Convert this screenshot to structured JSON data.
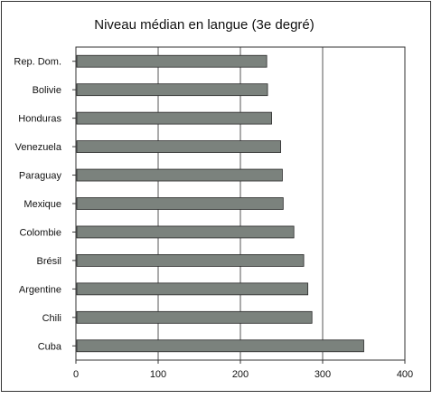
{
  "chart_data": {
    "type": "bar",
    "orientation": "horizontal",
    "title": "Niveau médian en langue (3e degré)",
    "xlabel": "",
    "ylabel": "",
    "categories": [
      "Rep. Dom.",
      "Bolivie",
      "Honduras",
      "Venezuela",
      "Paraguay",
      "Mexique",
      "Colombie",
      "Brésil",
      "Argentine",
      "Chili",
      "Cuba"
    ],
    "values": [
      232,
      233,
      238,
      249,
      251,
      252,
      265,
      277,
      282,
      287,
      350
    ],
    "xlim": [
      0,
      400
    ],
    "xticks": [
      0,
      100,
      200,
      300,
      400
    ],
    "grid": "vertical",
    "legend": "none",
    "colors": {
      "bar_fill": "#7b827d",
      "bar_stroke": "#2a2a2a",
      "gridline": "#555555",
      "frame": "#333333",
      "text": "#111111"
    }
  }
}
